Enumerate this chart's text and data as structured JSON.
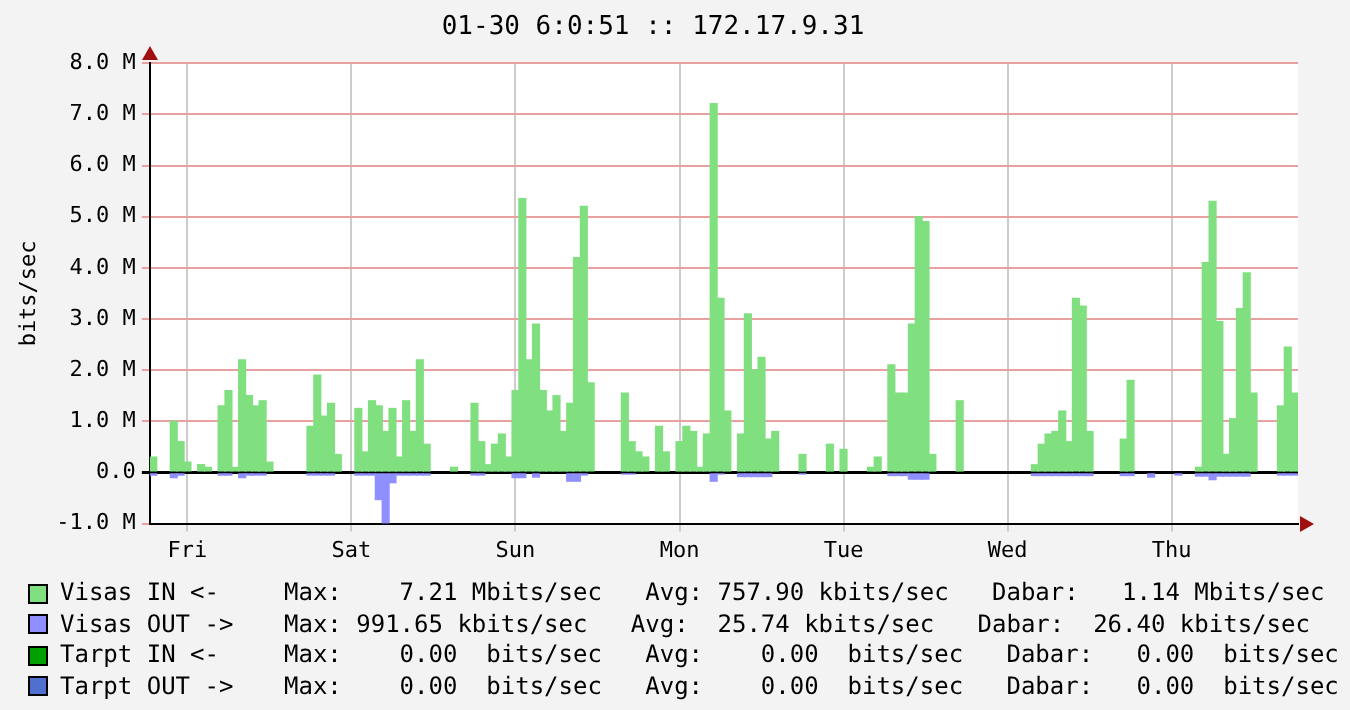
{
  "chart_data": {
    "type": "bar",
    "stacked": true,
    "title": "01-30 6:0:51 :: 172.17.9.31",
    "ylabel": "bits/sec",
    "categories": [
      null,
      null,
      null,
      null,
      null,
      "Fri",
      null,
      null,
      null,
      null,
      null,
      null,
      null,
      null,
      null,
      null,
      null,
      null,
      null,
      null,
      null,
      null,
      null,
      null,
      null,
      null,
      null,
      null,
      null,
      "Sat",
      null,
      null,
      null,
      null,
      null,
      null,
      null,
      null,
      null,
      null,
      null,
      null,
      null,
      null,
      null,
      null,
      null,
      null,
      null,
      null,
      null,
      null,
      null,
      "Sun",
      null,
      null,
      null,
      null,
      null,
      null,
      null,
      null,
      null,
      null,
      null,
      null,
      null,
      null,
      null,
      null,
      null,
      null,
      null,
      null,
      null,
      null,
      null,
      "Mon",
      null,
      null,
      null,
      null,
      null,
      null,
      null,
      null,
      null,
      null,
      null,
      null,
      null,
      null,
      null,
      null,
      null,
      null,
      null,
      null,
      null,
      null,
      null,
      "Tue",
      null,
      null,
      null,
      null,
      null,
      null,
      null,
      null,
      null,
      null,
      null,
      null,
      null,
      null,
      null,
      null,
      null,
      null,
      null,
      null,
      null,
      null,
      null,
      "Wed",
      null,
      null,
      null,
      null,
      null,
      null,
      null,
      null,
      null,
      null,
      null,
      null,
      null,
      null,
      null,
      null,
      null,
      null,
      null,
      null,
      null,
      null,
      null,
      "Thu",
      null,
      null,
      null,
      null,
      null,
      null,
      null,
      null,
      null,
      null,
      null,
      null,
      null,
      null,
      null,
      null,
      null,
      null
    ],
    "ylim": [
      -1,
      8
    ],
    "yticks": [
      {
        "value": -1,
        "label": "-1.0 M"
      },
      {
        "value": 0,
        "label": "0.0"
      },
      {
        "value": 1,
        "label": "1.0 M"
      },
      {
        "value": 2,
        "label": "2.0 M"
      },
      {
        "value": 3,
        "label": "3.0 M"
      },
      {
        "value": 4,
        "label": "4.0 M"
      },
      {
        "value": 5,
        "label": "5.0 M"
      },
      {
        "value": 6,
        "label": "6.0 M"
      },
      {
        "value": 7,
        "label": "7.0 M"
      },
      {
        "value": 8,
        "label": "8.0 M"
      }
    ],
    "grid": true,
    "legend": "bottom",
    "series": [
      {
        "name": "Visas IN <-",
        "color": "#80e080",
        "values": [
          0.3,
          0,
          0,
          1.0,
          0.6,
          0.2,
          0,
          0.15,
          0.1,
          0,
          1.3,
          1.6,
          0.1,
          2.2,
          1.5,
          1.3,
          1.4,
          0.2,
          0,
          0,
          0,
          0,
          0,
          0.9,
          1.9,
          1.1,
          1.35,
          0.35,
          0,
          0,
          1.25,
          0.4,
          1.4,
          1.3,
          0.8,
          1.25,
          0.3,
          1.4,
          0.8,
          2.2,
          0.55,
          0,
          0,
          0,
          0.1,
          0,
          0,
          1.35,
          0.6,
          0.15,
          0.55,
          0.75,
          0.3,
          1.6,
          5.35,
          2.2,
          2.9,
          1.6,
          1.2,
          1.5,
          0.8,
          1.35,
          4.2,
          5.2,
          1.75,
          0,
          0,
          0,
          0,
          1.55,
          0.6,
          0.4,
          0.3,
          0,
          0.9,
          0.4,
          0,
          0.6,
          0.9,
          0.8,
          0.1,
          0.75,
          7.21,
          3.4,
          1.2,
          0,
          0.75,
          3.1,
          2.0,
          2.25,
          0.65,
          0.8,
          0,
          0,
          0,
          0.35,
          0,
          0,
          0,
          0.55,
          0,
          0.45,
          0,
          0,
          0,
          0.1,
          0.3,
          0,
          2.1,
          1.55,
          1.55,
          2.9,
          5.0,
          4.9,
          0.35,
          0,
          0,
          0,
          1.4,
          0,
          0,
          0,
          0,
          0,
          0,
          0,
          0,
          0,
          0,
          0.15,
          0.55,
          0.75,
          0.8,
          1.2,
          0.6,
          3.4,
          3.25,
          0.8,
          0,
          0,
          0,
          0,
          0.65,
          1.8,
          0,
          0,
          0,
          0,
          0,
          0,
          0,
          0,
          0,
          0.1,
          4.1,
          5.3,
          2.95,
          0.35,
          1.05,
          3.2,
          3.9,
          1.55,
          0,
          0,
          0,
          1.3,
          2.45,
          1.55
        ]
      },
      {
        "name": "Visas OUT ->",
        "color": "#8f8fff",
        "values": [
          -0.05,
          0,
          0,
          -0.1,
          -0.05,
          0,
          0,
          0,
          0,
          0,
          -0.05,
          -0.05,
          0,
          -0.1,
          -0.05,
          -0.05,
          -0.05,
          0,
          0,
          0,
          0,
          0,
          0,
          -0.05,
          -0.05,
          -0.05,
          -0.05,
          0,
          0,
          0,
          -0.05,
          -0.05,
          -0.05,
          -0.53,
          -0.99,
          -0.2,
          -0.05,
          -0.05,
          -0.05,
          -0.05,
          -0.05,
          0,
          0,
          0,
          0,
          0,
          0,
          -0.05,
          -0.05,
          0,
          0,
          0,
          0,
          -0.1,
          -0.1,
          0,
          -0.09,
          0,
          0,
          0,
          0,
          -0.17,
          -0.17,
          -0.05,
          0,
          0,
          0,
          0,
          0,
          -0.03,
          -0.03,
          0,
          0,
          0,
          0,
          0,
          0,
          0,
          0,
          0,
          0,
          0,
          -0.17,
          -0.03,
          0,
          0,
          -0.08,
          -0.08,
          -0.08,
          -0.08,
          -0.08,
          0,
          0,
          0,
          0,
          -0.03,
          0,
          0,
          0,
          0,
          0,
          0,
          0,
          0,
          0,
          0,
          0,
          0,
          -0.06,
          -0.06,
          -0.06,
          -0.13,
          -0.13,
          -0.13,
          0,
          0,
          0,
          0,
          0,
          0,
          0,
          0,
          0,
          0,
          0,
          0,
          0,
          0,
          0,
          -0.06,
          -0.06,
          -0.06,
          -0.06,
          -0.06,
          -0.06,
          -0.06,
          -0.06,
          -0.06,
          0,
          0,
          0,
          0,
          -0.06,
          -0.06,
          0,
          0,
          -0.09,
          0,
          0,
          0,
          -0.05,
          0,
          0,
          -0.07,
          -0.07,
          -0.14,
          -0.07,
          -0.07,
          -0.07,
          -0.07,
          -0.07,
          0,
          0,
          0,
          0,
          -0.05,
          -0.05,
          -0.05
        ]
      },
      {
        "name": "Tarpt IN <-",
        "color": "#00a000",
        "values": [
          0,
          0,
          0,
          0,
          0,
          0,
          0,
          0,
          0,
          0,
          0,
          0,
          0,
          0,
          0,
          0,
          0,
          0,
          0,
          0,
          0,
          0,
          0,
          0,
          0,
          0,
          0,
          0,
          0,
          0,
          0,
          0,
          0,
          0,
          0,
          0,
          0,
          0,
          0,
          0,
          0,
          0,
          0,
          0,
          0,
          0,
          0,
          0,
          0,
          0,
          0,
          0,
          0,
          0,
          0,
          0,
          0,
          0,
          0,
          0,
          0,
          0,
          0,
          0,
          0,
          0,
          0,
          0,
          0,
          0,
          0,
          0,
          0,
          0,
          0,
          0,
          0,
          0,
          0,
          0,
          0,
          0,
          0,
          0,
          0,
          0,
          0,
          0,
          0,
          0,
          0,
          0,
          0,
          0,
          0,
          0,
          0,
          0,
          0,
          0,
          0,
          0,
          0,
          0,
          0,
          0,
          0,
          0,
          0,
          0,
          0,
          0,
          0,
          0,
          0,
          0,
          0,
          0,
          0,
          0,
          0,
          0,
          0,
          0,
          0,
          0,
          0,
          0,
          0,
          0,
          0,
          0,
          0,
          0,
          0,
          0,
          0,
          0,
          0,
          0,
          0,
          0,
          0,
          0,
          0,
          0,
          0,
          0,
          0,
          0,
          0,
          0,
          0,
          0,
          0,
          0,
          0,
          0,
          0,
          0,
          0,
          0,
          0,
          0,
          0,
          0,
          0,
          0
        ]
      },
      {
        "name": "Tarpt OUT ->",
        "color": "#5070d0",
        "values": [
          0,
          0,
          0,
          0,
          0,
          0,
          0,
          0,
          0,
          0,
          0,
          0,
          0,
          0,
          0,
          0,
          0,
          0,
          0,
          0,
          0,
          0,
          0,
          0,
          0,
          0,
          0,
          0,
          0,
          0,
          0,
          0,
          0,
          0,
          0,
          0,
          0,
          0,
          0,
          0,
          0,
          0,
          0,
          0,
          0,
          0,
          0,
          0,
          0,
          0,
          0,
          0,
          0,
          0,
          0,
          0,
          0,
          0,
          0,
          0,
          0,
          0,
          0,
          0,
          0,
          0,
          0,
          0,
          0,
          0,
          0,
          0,
          0,
          0,
          0,
          0,
          0,
          0,
          0,
          0,
          0,
          0,
          0,
          0,
          0,
          0,
          0,
          0,
          0,
          0,
          0,
          0,
          0,
          0,
          0,
          0,
          0,
          0,
          0,
          0,
          0,
          0,
          0,
          0,
          0,
          0,
          0,
          0,
          0,
          0,
          0,
          0,
          0,
          0,
          0,
          0,
          0,
          0,
          0,
          0,
          0,
          0,
          0,
          0,
          0,
          0,
          0,
          0,
          0,
          0,
          0,
          0,
          0,
          0,
          0,
          0,
          0,
          0,
          0,
          0,
          0,
          0,
          0,
          0,
          0,
          0,
          0,
          0,
          0,
          0,
          0,
          0,
          0,
          0,
          0,
          0,
          0,
          0,
          0,
          0,
          0,
          0,
          0,
          0,
          0,
          0,
          0,
          0
        ]
      }
    ],
    "annotations": [
      "Max:    7.21 Mbits/sec   Avg: 757.90 kbits/sec   Dabar:   1.14 Mbits/sec",
      "Max: 991.65 kbits/sec   Avg:  25.74 kbits/sec   Dabar:  26.40 kbits/sec",
      "Max:    0.00  bits/sec   Avg:    0.00  bits/sec   Dabar:   0.00  bits/sec",
      "Max:    0.00  bits/sec   Avg:    0.00  bits/sec   Dabar:   0.00  bits/sec"
    ]
  }
}
